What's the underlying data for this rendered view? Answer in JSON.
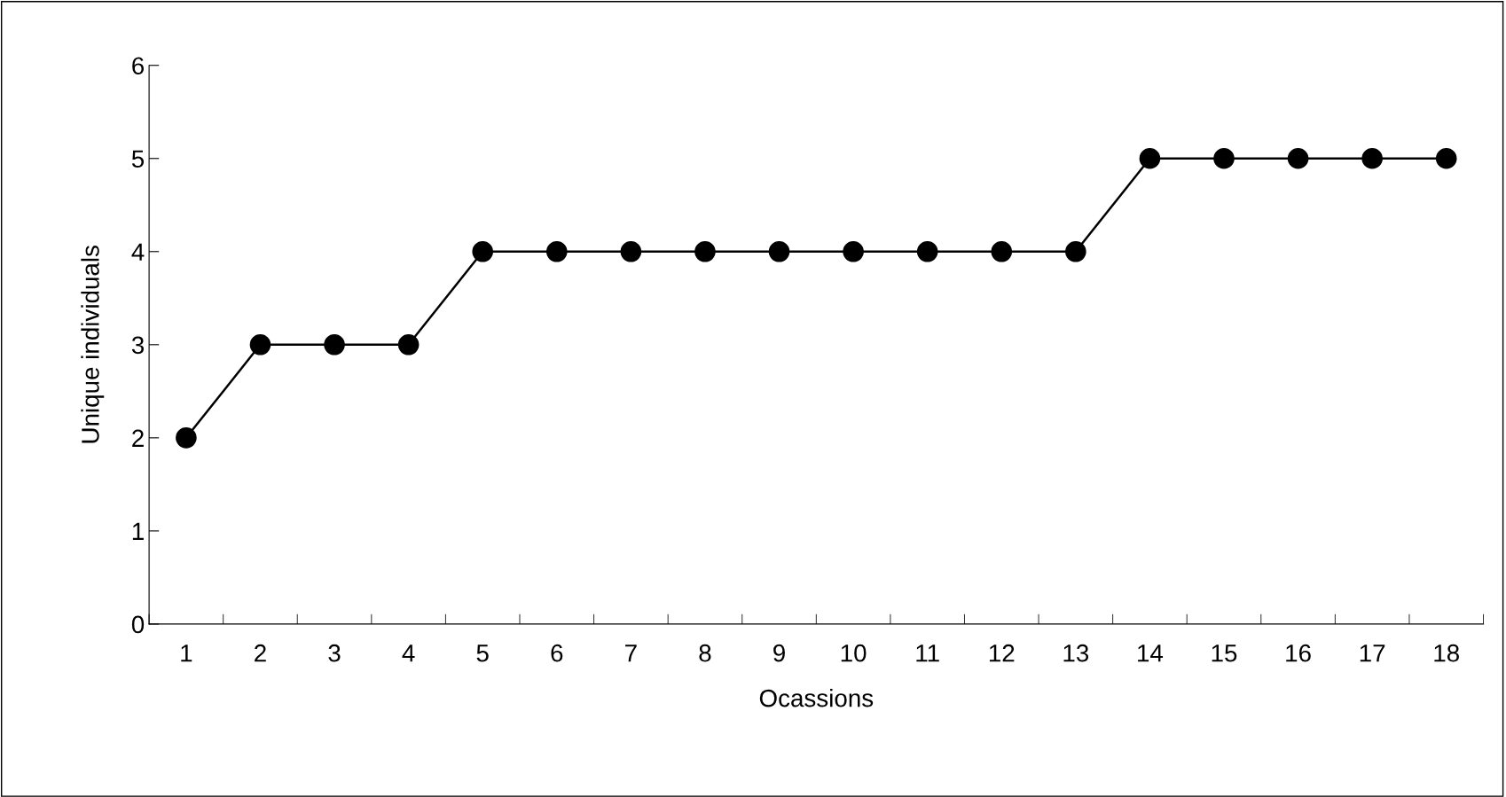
{
  "chart_data": {
    "type": "line",
    "xlabel": "Ocassions",
    "ylabel": "Unique individuals",
    "categories": [
      "1",
      "2",
      "3",
      "4",
      "5",
      "6",
      "7",
      "8",
      "9",
      "10",
      "11",
      "12",
      "13",
      "14",
      "15",
      "16",
      "17",
      "18"
    ],
    "series": [
      {
        "color": "#000000",
        "values": [
          2,
          3,
          3,
          3,
          4,
          4,
          4,
          4,
          4,
          4,
          4,
          4,
          4,
          5,
          5,
          5,
          5,
          5
        ]
      }
    ],
    "ylim": [
      0,
      6
    ],
    "yticks": [
      0,
      1,
      2,
      3,
      4,
      5,
      6
    ],
    "grid": false,
    "marker": "circle",
    "line_style": "solid"
  }
}
